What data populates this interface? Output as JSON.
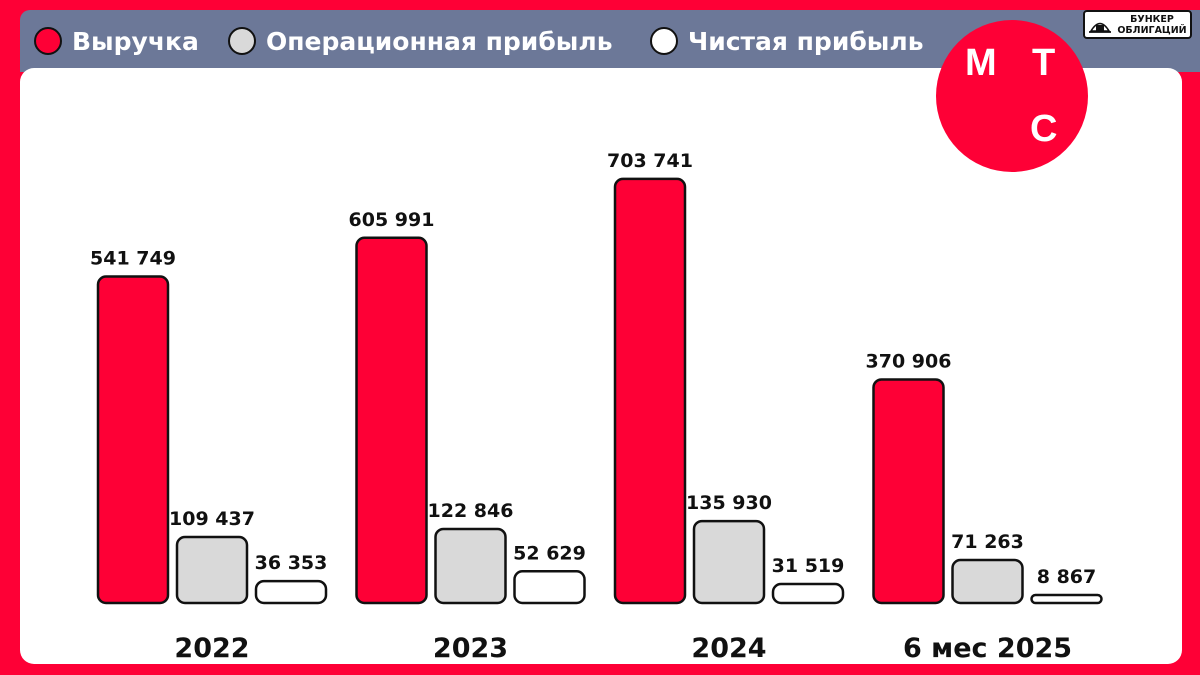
{
  "colors": {
    "background": "#fe0036",
    "header_bar": "#6c7898",
    "revenue": "#fe0036",
    "operating_profit": "#d9d9d9",
    "net_profit": "#ffffff",
    "outline": "#111111"
  },
  "legend": [
    {
      "label": "Выручка",
      "color": "#fe0036"
    },
    {
      "label": "Операционная прибыль",
      "color": "#d9d9d9"
    },
    {
      "label": "Чистая прибыль",
      "color": "#ffffff"
    }
  ],
  "logo": {
    "letters": [
      "М",
      "Т",
      "С"
    ]
  },
  "brand": {
    "line1": "БУНКЕР",
    "line2": "ОБЛИГАЦИЙ",
    "icon": "bunker-icon"
  },
  "chart_data": {
    "type": "bar",
    "categories": [
      "2022",
      "2023",
      "2024",
      "6 мес 2025"
    ],
    "series": [
      {
        "name": "Выручка",
        "values": [
          541749,
          605991,
          703741,
          370906
        ],
        "labels": [
          "541 749",
          "605 991",
          "703 741",
          "370 906"
        ]
      },
      {
        "name": "Операционная прибыль",
        "values": [
          109437,
          122846,
          135930,
          71263
        ],
        "labels": [
          "109 437",
          "122 846",
          "135 930",
          "71 263"
        ]
      },
      {
        "name": "Чистая прибыль",
        "values": [
          36353,
          52629,
          31519,
          8867
        ],
        "labels": [
          "36 353",
          "52 629",
          "31 519",
          "8 867"
        ]
      }
    ],
    "title": "",
    "xlabel": "",
    "ylabel": "",
    "ylim": [
      0,
      750000
    ],
    "grid": false,
    "legend_position": "top"
  }
}
